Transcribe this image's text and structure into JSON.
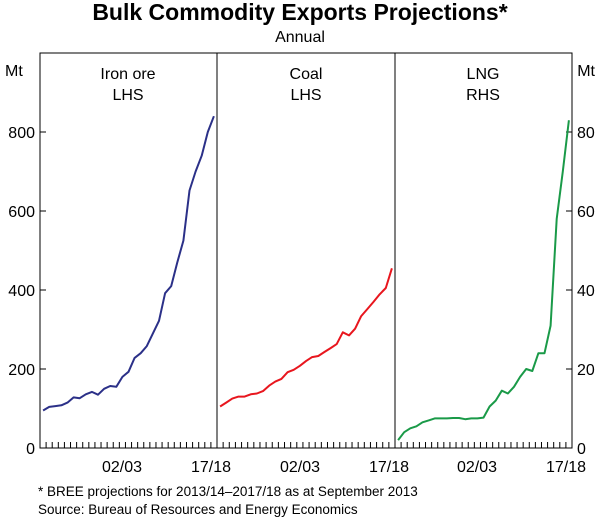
{
  "title": "Bulk Commodity Exports Projections*",
  "subtitle": "Annual",
  "left_unit": "Mt",
  "right_unit": "Mt",
  "left_ticks": [
    "0",
    "200",
    "400",
    "600",
    "800"
  ],
  "right_ticks": [
    "0",
    "20",
    "40",
    "60",
    "80"
  ],
  "footnote": "*   BREE projections for 2013/14–2017/18 as at September 2013",
  "source": "Source: Bureau of Resources and Energy Economics",
  "chart_data": {
    "type": "line",
    "y_left": {
      "label": "Mt",
      "ylim": [
        0,
        1000
      ],
      "ticks": [
        0,
        200,
        400,
        600,
        800
      ]
    },
    "y_right": {
      "label": "Mt",
      "ylim": [
        0,
        100
      ],
      "ticks": [
        0,
        20,
        40,
        60,
        80
      ]
    },
    "panels": [
      {
        "title": "Iron ore",
        "axis": "LHS",
        "color": "#2b3088",
        "x_tick_labels": [
          "02/03",
          "17/18"
        ],
        "values": [
          95,
          104,
          106,
          108,
          115,
          128,
          126,
          136,
          142,
          135,
          150,
          157,
          155,
          180,
          193,
          228,
          240,
          258,
          290,
          322,
          392,
          410,
          470,
          525,
          652,
          700,
          740,
          800,
          840
        ]
      },
      {
        "title": "Coal",
        "axis": "LHS",
        "color": "#e8161e",
        "x_tick_labels": [
          "02/03",
          "17/18"
        ],
        "values": [
          105,
          115,
          125,
          130,
          130,
          136,
          138,
          144,
          158,
          168,
          175,
          192,
          198,
          208,
          220,
          230,
          233,
          243,
          253,
          263,
          293,
          285,
          302,
          334,
          352,
          370,
          389,
          405,
          455
        ]
      },
      {
        "title": "LNG",
        "axis": "RHS",
        "color": "#1a9a48",
        "x_tick_labels": [
          "02/03",
          "17/18"
        ],
        "values": [
          2,
          4,
          5,
          5.5,
          6.5,
          7,
          7.5,
          7.5,
          7.5,
          7.6,
          7.6,
          7.3,
          7.5,
          7.5,
          7.7,
          10.5,
          12,
          14.5,
          13.8,
          15.5,
          18,
          20,
          19.5,
          24,
          24,
          31,
          58,
          70,
          83
        ]
      }
    ]
  }
}
